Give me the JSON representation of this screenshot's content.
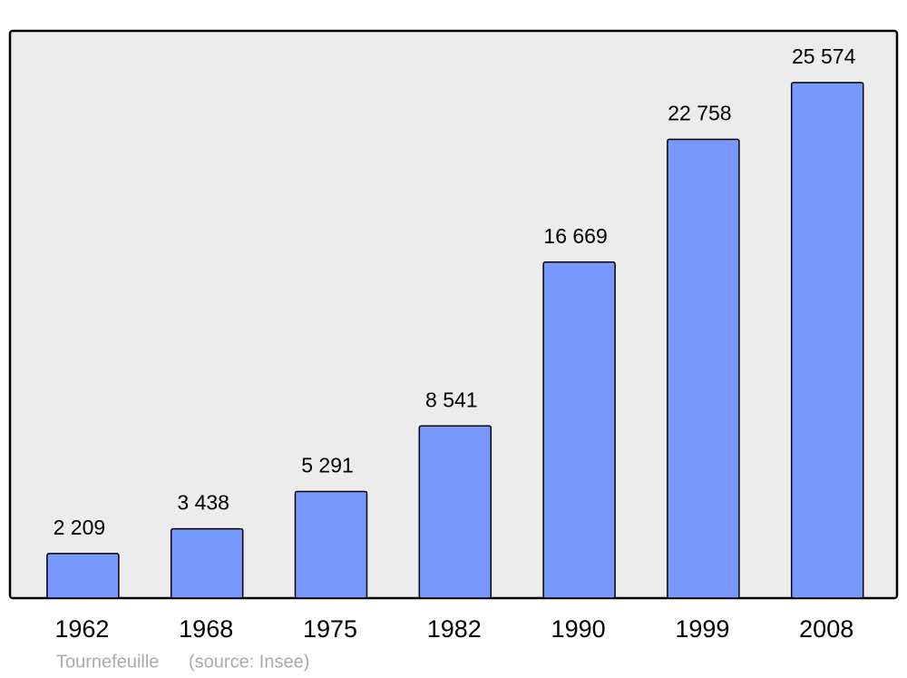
{
  "chart_data": {
    "type": "bar",
    "categories": [
      "1962",
      "1968",
      "1975",
      "1982",
      "1990",
      "1999",
      "2008"
    ],
    "values": [
      2209,
      3438,
      5291,
      8541,
      16669,
      22758,
      25574
    ],
    "value_labels": [
      "2 209",
      "3 438",
      "5 291",
      "8 541",
      "16 669",
      "22 758",
      "25 574"
    ],
    "color": "#7799ff",
    "ylim": [
      0,
      28140
    ],
    "caption": {
      "place": "Tournefeuille",
      "source": "(source: Insee)"
    }
  }
}
